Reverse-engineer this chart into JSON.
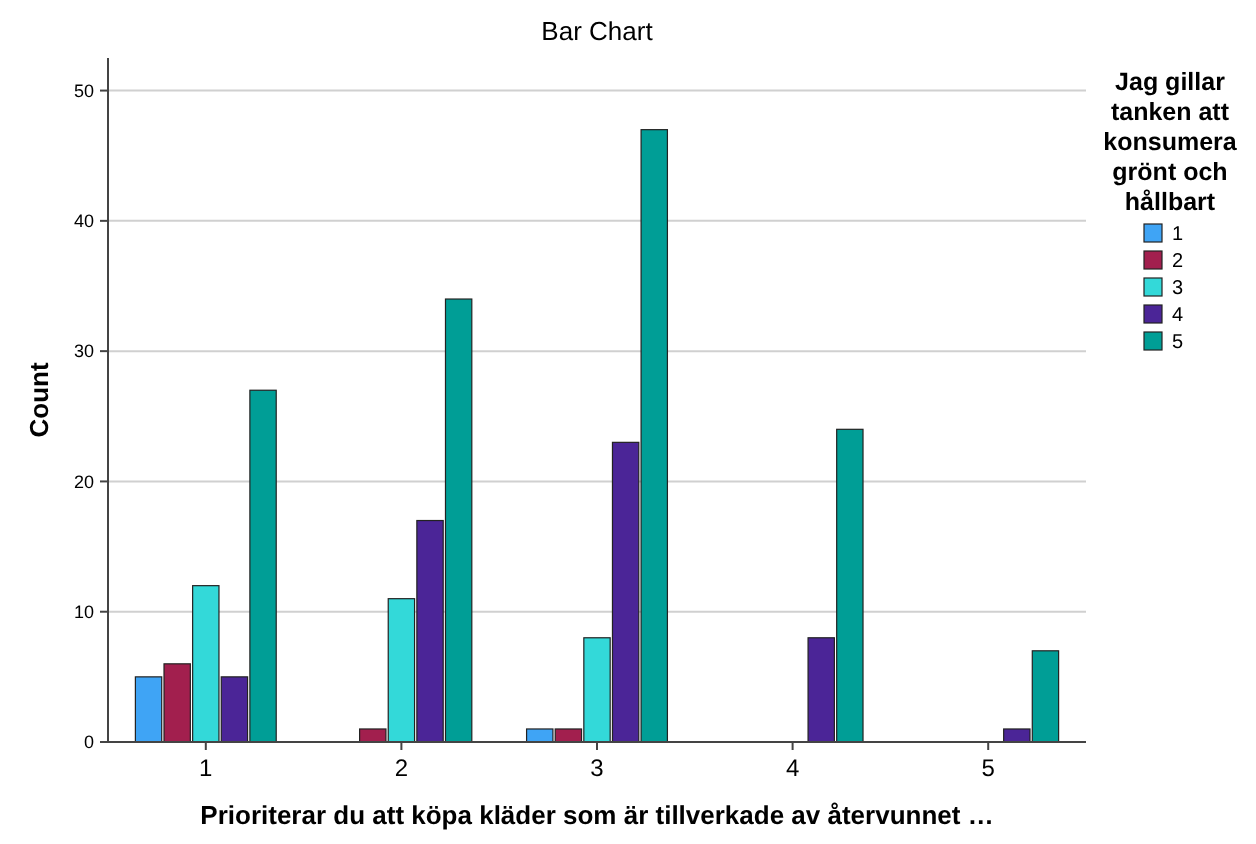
{
  "chart_data": {
    "type": "bar",
    "title": "Bar Chart",
    "xlabel": "Prioriterar du att köpa kläder som är tillverkade av återvunnet …",
    "ylabel": "Count",
    "legend_title": "Jag gillar tanken att konsumera grönt och hållbart",
    "categories": [
      "1",
      "2",
      "3",
      "4",
      "5"
    ],
    "series": [
      {
        "name": "1",
        "color": "#3fa4f5",
        "values": [
          5,
          null,
          1,
          null,
          null
        ]
      },
      {
        "name": "2",
        "color": "#a21f4e",
        "values": [
          6,
          1,
          1,
          null,
          null
        ]
      },
      {
        "name": "3",
        "color": "#33d9d9",
        "values": [
          12,
          11,
          8,
          null,
          null
        ]
      },
      {
        "name": "4",
        "color": "#4b2597",
        "values": [
          5,
          17,
          23,
          8,
          1
        ]
      },
      {
        "name": "5",
        "color": "#009e96",
        "values": [
          27,
          34,
          47,
          24,
          7
        ]
      }
    ],
    "ylim": [
      0,
      52.5
    ],
    "yticks": [
      0,
      10,
      20,
      30,
      40,
      50
    ],
    "grid": "y",
    "legend": "right"
  }
}
